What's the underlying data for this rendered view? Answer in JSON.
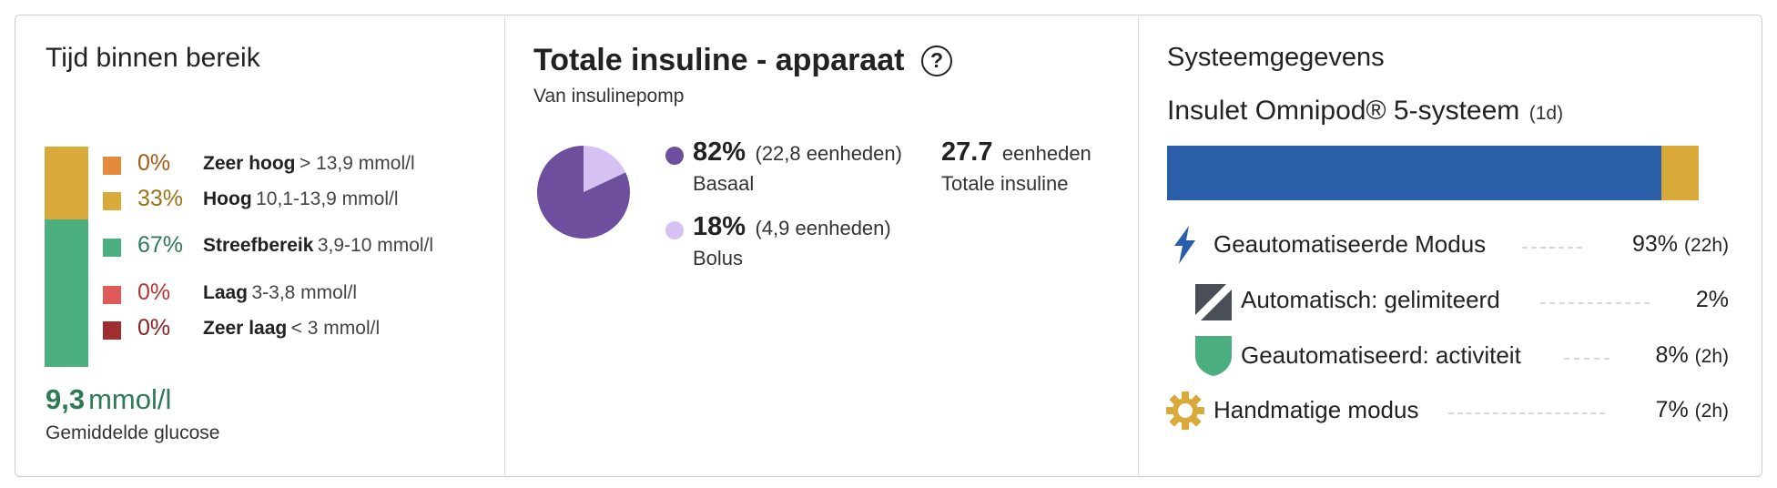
{
  "time_in_range": {
    "title": "Tijd binnen bereik",
    "ranges": [
      {
        "pct": "0%",
        "name": "Zeer hoog",
        "value": "> 13,9 mmol/l",
        "color": "#e58a3c",
        "text_color": "#a15c17"
      },
      {
        "pct": "33%",
        "name": "Hoog",
        "value": "10,1-13,9 mmol/l",
        "color": "#d9a93a",
        "text_color": "#9a7416"
      },
      {
        "pct": "67%",
        "name": "Streefbereik",
        "value": "3,9-10 mmol/l",
        "color": "#4caf80",
        "text_color": "#2e7a55"
      },
      {
        "pct": "0%",
        "name": "Laag",
        "value": "3-3,8 mmol/l",
        "color": "#e05a5a",
        "text_color": "#b53535"
      },
      {
        "pct": "0%",
        "name": "Zeer laag",
        "value": "< 3 mmol/l",
        "color": "#a12e2e",
        "text_color": "#8a2222"
      }
    ],
    "bar_fractions": {
      "high": 0.33,
      "target": 0.67
    },
    "avg_value": "9,3",
    "avg_unit": "mmol/l",
    "avg_label": "Gemiddelde glucose"
  },
  "total_insulin": {
    "title": "Totale insuline - apparaat",
    "help_glyph": "?",
    "subtitle": "Van insulinepomp",
    "basal": {
      "pct": "82%",
      "units": "(22,8 eenheden)",
      "label": "Basaal",
      "color": "#6d4f9e",
      "fraction": 0.82
    },
    "bolus": {
      "pct": "18%",
      "units": "(4,9 eenheden)",
      "label": "Bolus",
      "color": "#d5c2f2",
      "fraction": 0.18
    },
    "total_value": "27.7",
    "total_unit": "eenheden",
    "total_label": "Totale insuline"
  },
  "system": {
    "title": "Systeemgegevens",
    "device": "Insulet Omnipod® 5-systeem",
    "device_days": "(1d)",
    "bar": {
      "automated_fraction": 0.93,
      "manual_fraction": 0.07,
      "automated_color": "#2a5ea8",
      "manual_color": "#d9a93a"
    },
    "modes": [
      {
        "icon": "lightning-icon",
        "label": "Geautomatiseerde Modus",
        "pct": "93%",
        "hours": "(22h)"
      },
      {
        "icon": "limited-icon",
        "label": "Automatisch: gelimiteerd",
        "pct": "2%",
        "hours": ""
      },
      {
        "icon": "shield-icon",
        "label": "Geautomatiseerd: activiteit",
        "pct": "8%",
        "hours": "(2h)"
      },
      {
        "icon": "gear-icon",
        "label": "Handmatige modus",
        "pct": "7%",
        "hours": "(2h)"
      }
    ]
  }
}
